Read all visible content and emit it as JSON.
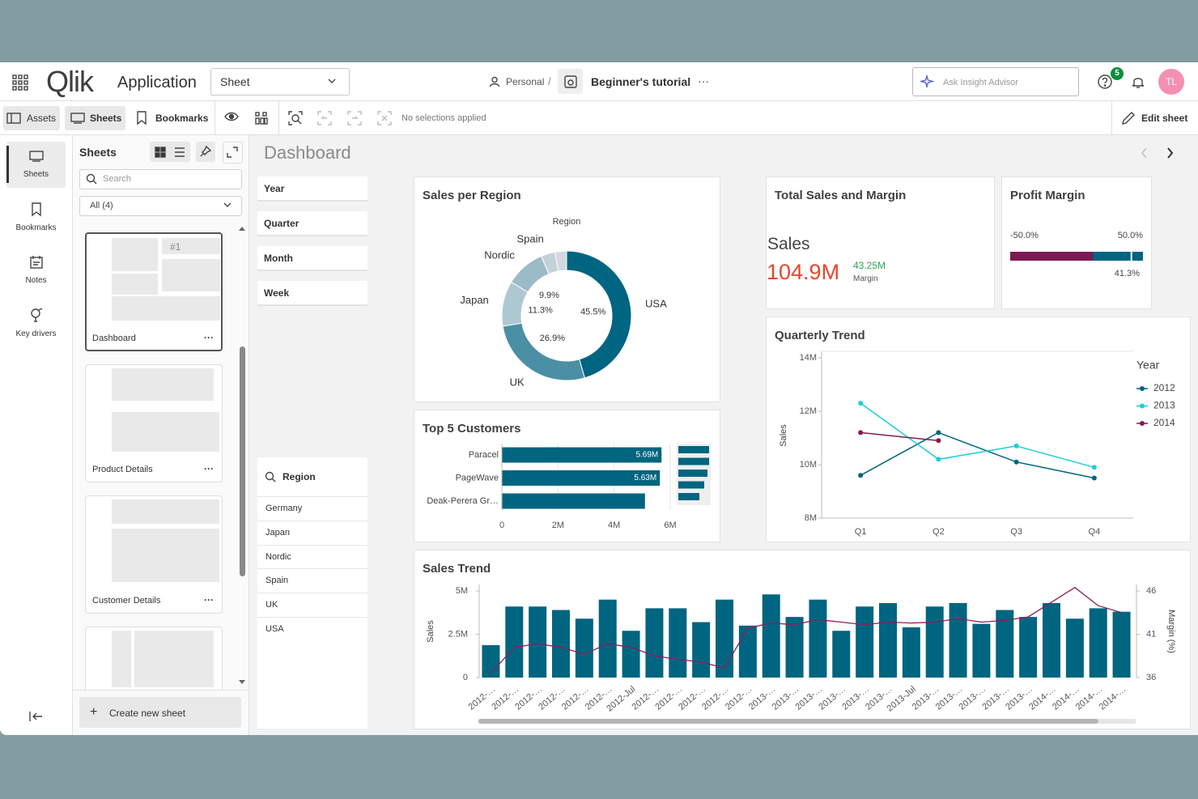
{
  "header": {
    "logo": "Qlik",
    "app_label": "Application",
    "sheet_selector": "Sheet",
    "space": "Personal",
    "separator": "/",
    "app_name": "Beginner's tutorial",
    "more": "···",
    "insight_placeholder": "Ask Insight Advisor",
    "notification_count": "5",
    "avatar": "TL"
  },
  "toolbar": {
    "assets": "Assets",
    "sheets": "Sheets",
    "bookmarks": "Bookmarks",
    "selections": "No selections applied",
    "edit_sheet": "Edit sheet"
  },
  "rail": [
    "Sheets",
    "Bookmarks",
    "Notes",
    "Key drivers"
  ],
  "sheets_panel": {
    "title": "Sheets",
    "search_placeholder": "Search",
    "filter": "All (4)",
    "kpi_thumbnail": "#1",
    "sheets": [
      "Dashboard",
      "Product Details",
      "Customer Details"
    ],
    "sheet_menu": "···",
    "create": "Create new sheet"
  },
  "sheet": {
    "title": "Dashboard"
  },
  "filters": [
    "Year",
    "Quarter",
    "Month",
    "Week"
  ],
  "region_filter": {
    "title": "Region",
    "items": [
      "Germany",
      "Japan",
      "Nordic",
      "Spain",
      "UK",
      "USA"
    ]
  },
  "sales_per_region": {
    "type": "pie",
    "title": "Sales per Region",
    "legend_title": "Region",
    "categories": [
      "USA",
      "UK",
      "Japan",
      "Nordic",
      "Spain",
      null
    ],
    "values": [
      45.5,
      26.9,
      11.3,
      9.9,
      3.5,
      2.9
    ],
    "value_labels": [
      "45.5%",
      "26.9%",
      "11.3%",
      "9.9%",
      null,
      null
    ],
    "colors": [
      "#006580",
      "#4b8fa4",
      "#aec8d2",
      "#9dbac7",
      "#c3d2d9",
      "#d3d9de"
    ]
  },
  "total_sales": {
    "title": "Total Sales and Margin",
    "kpi_label": "Sales",
    "kpi_value": "104.9M",
    "secondary_value": "43.25M",
    "secondary_label": "Margin"
  },
  "profit_margin": {
    "type": "gauge",
    "title": "Profit Margin",
    "value": 41.3,
    "value_label": "41.3%",
    "xlim": [
      -50,
      50
    ],
    "xticks": [
      {
        "value": -50,
        "label": "-50.0%"
      },
      {
        "value": 50,
        "label": "50.0%"
      }
    ],
    "segment_limit": 12.5,
    "colors": [
      "#7b1a55",
      "#006580"
    ]
  },
  "quarterly_trend": {
    "type": "line",
    "title": "Quarterly Trend",
    "ylabel": "Sales",
    "legend_title": "Year",
    "categories": [
      "Q1",
      "Q2",
      "Q3",
      "Q4"
    ],
    "ylim": [
      8000000,
      14000000
    ],
    "yticks": [
      {
        "value": 8000000,
        "label": "8M"
      },
      {
        "value": 10000000,
        "label": "10M"
      },
      {
        "value": 12000000,
        "label": "12M"
      },
      {
        "value": 14000000,
        "label": "14M"
      }
    ],
    "series": [
      {
        "name": "2012",
        "color": "#006580",
        "values": [
          9600000,
          11200000,
          10100000,
          9500000
        ]
      },
      {
        "name": "2013",
        "color": "#1ccfd6",
        "values": [
          12300000,
          10200000,
          10700000,
          9900000
        ]
      },
      {
        "name": "2014",
        "color": "#851b57",
        "values": [
          11200000,
          10900000,
          null,
          null
        ]
      }
    ]
  },
  "top_customers": {
    "type": "barh",
    "title": "Top 5 Customers",
    "categories": [
      "Paracel",
      "PageWave",
      "Deak-Perera Gr…"
    ],
    "values": [
      5690000,
      5630000,
      5100000
    ],
    "value_labels": [
      "5.69M",
      "5.63M",
      null
    ],
    "xlim": [
      0,
      6000000
    ],
    "xticks": [
      0,
      {
        "value": 2000000,
        "label": "2M"
      },
      {
        "value": 4000000,
        "label": "4M"
      },
      {
        "value": 6000000,
        "label": "6M"
      }
    ],
    "color": "#006580"
  },
  "sales_trend": {
    "type": "combo",
    "title": "Sales Trend",
    "ylabel": "Sales",
    "y2label": "Margin (%)",
    "categories": [
      "2012-…",
      "2012-…",
      "2012-…",
      "2012-…",
      "2012-…",
      "2012-…",
      "2012-Jul",
      "2012-…",
      "2012-…",
      "2012-…",
      "2012-…",
      "2012-…",
      "2013-…",
      "2013-…",
      "2013-…",
      "2013-…",
      "2013-…",
      "2013-…",
      "2013-Jul",
      "2013-…",
      "2013-…",
      "2013-…",
      "2013-…",
      "2013-…",
      "2014-…",
      "2014-…",
      "2014-…",
      "2014-…"
    ],
    "ylim": [
      0,
      5000000
    ],
    "yticks": [
      0,
      {
        "value": 2500000,
        "label": "2.5M"
      },
      {
        "value": 5000000,
        "label": "5M"
      }
    ],
    "y2lim": [
      36,
      46
    ],
    "y2ticks": [
      36,
      41,
      46
    ],
    "series": [
      {
        "type": "bar",
        "color": "#006580",
        "values": [
          1870000,
          4100000,
          4100000,
          3900000,
          3400000,
          4500000,
          2700000,
          4000000,
          4000000,
          3200000,
          4500000,
          3000000,
          4800000,
          3500000,
          4500000,
          2700000,
          4100000,
          4300000,
          2900000,
          4100000,
          4300000,
          3100000,
          3900000,
          3500000,
          4300000,
          3400000,
          4000000,
          3800000
        ]
      },
      {
        "type": "line",
        "axis": "y2",
        "color": "#8b1f5b",
        "values": [
          36.5,
          39.5,
          39.9,
          39.5,
          38.7,
          39.9,
          39.5,
          38.5,
          38.1,
          37.8,
          37.1,
          41.7,
          42.3,
          42.1,
          42.7,
          42.4,
          42.1,
          42.4,
          42.3,
          42.4,
          42.8,
          42.4,
          42.6,
          43.0,
          44.7,
          46.4,
          44.3,
          43.5
        ]
      }
    ]
  }
}
